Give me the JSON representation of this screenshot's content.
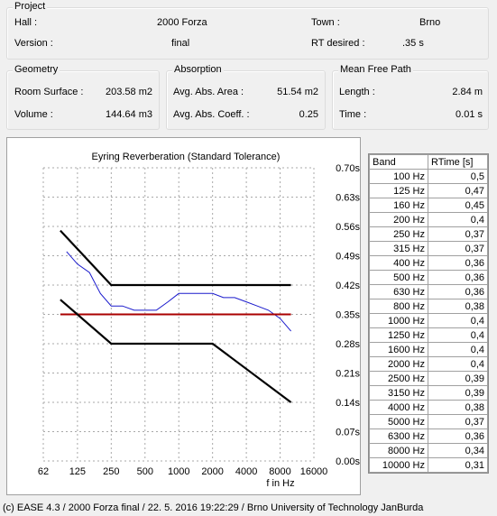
{
  "project": {
    "title": "Project",
    "hall_label": "Hall :",
    "hall_value": "2000 Forza",
    "town_label": "Town :",
    "town_value": "Brno",
    "version_label": "Version :",
    "version_value": "final",
    "rt_label": "RT desired :",
    "rt_value": ".35 s"
  },
  "geometry": {
    "title": "Geometry",
    "surface_label": "Room Surface :",
    "surface_value": "203.58 m2",
    "volume_label": "Volume :",
    "volume_value": "144.64 m3"
  },
  "absorption": {
    "title": "Absorption",
    "area_label": "Avg. Abs. Area :",
    "area_value": "51.54 m2",
    "coeff_label": "Avg. Abs. Coeff. :",
    "coeff_value": "0.25"
  },
  "mfp": {
    "title": "Mean Free Path",
    "length_label": "Length :",
    "length_value": "2.84 m",
    "time_label": "Time :",
    "time_value": "0.01 s"
  },
  "table": {
    "col_band": "Band",
    "col_rt": "RTime [s]",
    "rows": [
      {
        "band": "100 Hz",
        "rt": "0,5"
      },
      {
        "band": "125 Hz",
        "rt": "0,47"
      },
      {
        "band": "160 Hz",
        "rt": "0,45"
      },
      {
        "band": "200 Hz",
        "rt": "0,4"
      },
      {
        "band": "250 Hz",
        "rt": "0,37"
      },
      {
        "band": "315 Hz",
        "rt": "0,37"
      },
      {
        "band": "400 Hz",
        "rt": "0,36"
      },
      {
        "band": "500 Hz",
        "rt": "0,36"
      },
      {
        "band": "630 Hz",
        "rt": "0,36"
      },
      {
        "band": "800 Hz",
        "rt": "0,38"
      },
      {
        "band": "1000 Hz",
        "rt": "0,4"
      },
      {
        "band": "1250 Hz",
        "rt": "0,4"
      },
      {
        "band": "1600 Hz",
        "rt": "0,4"
      },
      {
        "band": "2000 Hz",
        "rt": "0,4"
      },
      {
        "band": "2500 Hz",
        "rt": "0,39"
      },
      {
        "band": "3150 Hz",
        "rt": "0,39"
      },
      {
        "band": "4000 Hz",
        "rt": "0,38"
      },
      {
        "band": "5000 Hz",
        "rt": "0,37"
      },
      {
        "band": "6300 Hz",
        "rt": "0,36"
      },
      {
        "band": "8000 Hz",
        "rt": "0,34"
      },
      {
        "band": "10000 Hz",
        "rt": "0,31"
      }
    ]
  },
  "footer": "(c) EASE 4.3  / 2000 Forza final / 22. 5. 2016 19:22:29 / Brno University of Technology JanBurda",
  "chart_data": {
    "type": "line",
    "title": "Eyring Reverberation (Standard Tolerance)",
    "xlabel": "f in Hz",
    "ylabel": "",
    "x_scale": "log",
    "x_ticks": [
      62,
      125,
      250,
      500,
      1000,
      2000,
      4000,
      8000,
      16000
    ],
    "x_tick_labels": [
      "62",
      "125",
      "250",
      "500",
      "1000",
      "2000",
      "4000",
      "8000",
      "16000"
    ],
    "y_ticks": [
      0,
      0.07,
      0.14,
      0.21,
      0.28,
      0.35,
      0.42,
      0.49,
      0.56,
      0.63,
      0.7
    ],
    "y_tick_labels": [
      "0.00s",
      "0.07s",
      "0.14s",
      "0.21s",
      "0.28s",
      "0.35s",
      "0.42s",
      "0.49s",
      "0.56s",
      "0.63s",
      "0.70s"
    ],
    "ylim": [
      0,
      0.7
    ],
    "xlim": [
      62,
      16000
    ],
    "grid": true,
    "series": [
      {
        "role": "measured",
        "color": "#1a1acc",
        "x": [
          100,
          125,
          160,
          200,
          250,
          315,
          400,
          500,
          630,
          800,
          1000,
          1250,
          1600,
          2000,
          2500,
          3150,
          4000,
          5000,
          6300,
          8000,
          10000
        ],
        "y": [
          0.5,
          0.47,
          0.45,
          0.4,
          0.37,
          0.37,
          0.36,
          0.36,
          0.36,
          0.38,
          0.4,
          0.4,
          0.4,
          0.4,
          0.39,
          0.39,
          0.38,
          0.37,
          0.36,
          0.34,
          0.31
        ]
      },
      {
        "role": "desired",
        "color": "#aa0000",
        "x": [
          88,
          10000
        ],
        "y": [
          0.35,
          0.35
        ]
      },
      {
        "role": "upper-tolerance",
        "color": "#000000",
        "x": [
          88,
          250,
          10000
        ],
        "y": [
          0.55,
          0.42,
          0.42
        ]
      },
      {
        "role": "lower-tolerance",
        "color": "#000000",
        "x": [
          88,
          250,
          2000,
          10000
        ],
        "y": [
          0.385,
          0.28,
          0.28,
          0.14
        ]
      }
    ]
  }
}
